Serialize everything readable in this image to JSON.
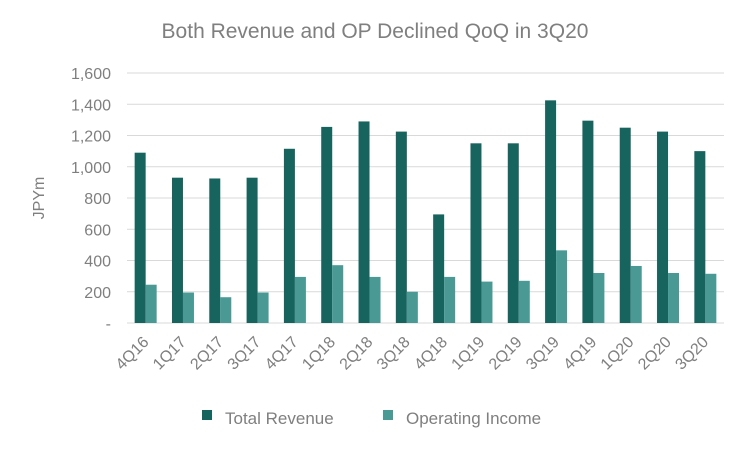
{
  "chart_data": {
    "type": "bar",
    "title": "Both Revenue and OP Declined QoQ in 3Q20",
    "xlabel": "",
    "ylabel": "JPYm",
    "ylim": [
      0,
      1600
    ],
    "yticks": [
      0,
      200,
      400,
      600,
      800,
      1000,
      1200,
      1400,
      1600
    ],
    "ytick_labels": [
      "-",
      "200",
      "400",
      "600",
      "800",
      "1,000",
      "1,200",
      "1,400",
      "1,600"
    ],
    "grid": true,
    "legend_position": "bottom",
    "categories": [
      "4Q16",
      "1Q17",
      "2Q17",
      "3Q17",
      "4Q17",
      "1Q18",
      "2Q18",
      "3Q18",
      "4Q18",
      "1Q19",
      "2Q19",
      "3Q19",
      "4Q19",
      "1Q20",
      "2Q20",
      "3Q20"
    ],
    "series": [
      {
        "name": "Total Revenue",
        "color": "#17635e",
        "values": [
          1090,
          930,
          925,
          930,
          1115,
          1255,
          1290,
          1225,
          695,
          1150,
          1150,
          1425,
          1295,
          1250,
          1225,
          1100
        ]
      },
      {
        "name": "Operating Income",
        "color": "#4a9995",
        "values": [
          245,
          195,
          165,
          195,
          295,
          370,
          295,
          200,
          295,
          265,
          270,
          465,
          320,
          365,
          320,
          315
        ]
      }
    ]
  }
}
